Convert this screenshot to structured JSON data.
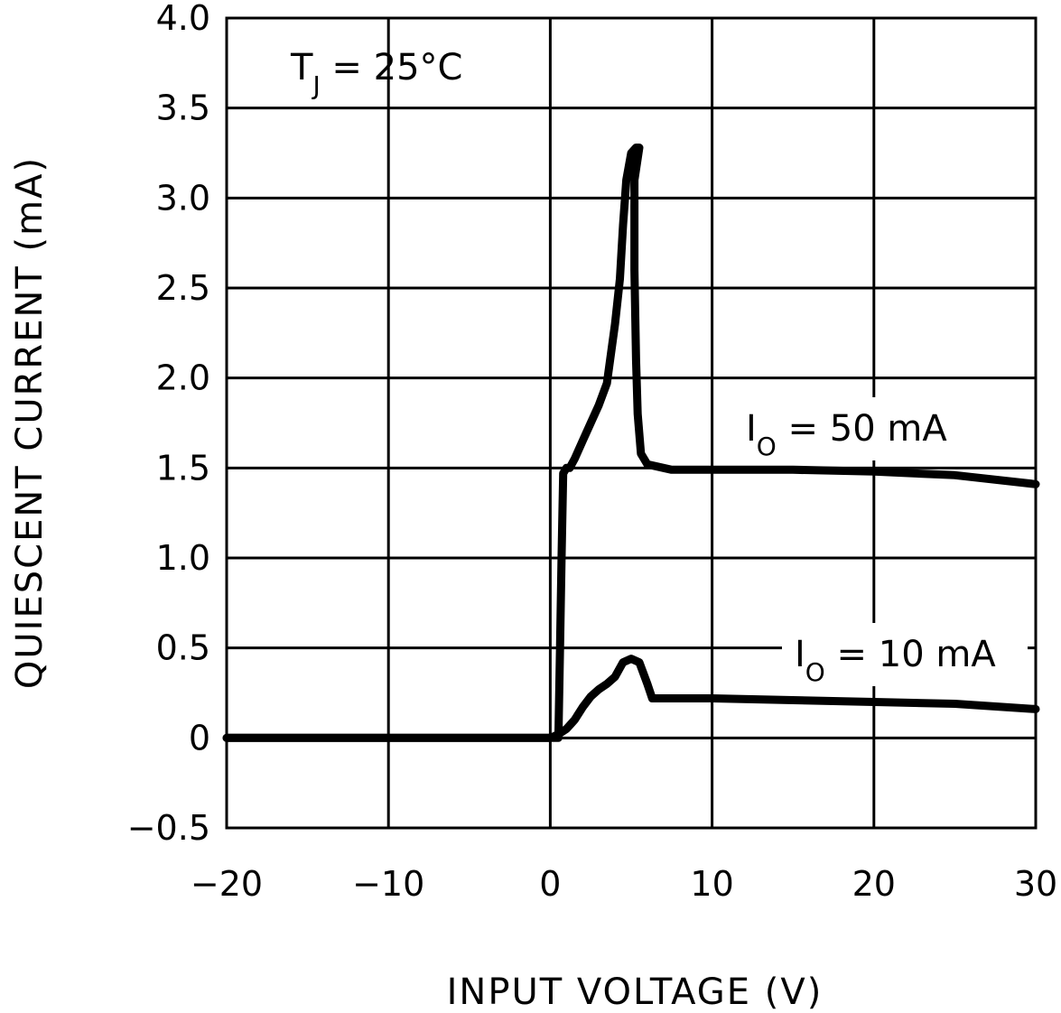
{
  "chart_data": {
    "type": "line",
    "xlabel": "INPUT VOLTAGE (V)",
    "ylabel": "QUIESCENT CURRENT (mA)",
    "xlim": [
      -20,
      30
    ],
    "ylim": [
      -0.5,
      4.0
    ],
    "x_ticks": [
      -20,
      -10,
      0,
      10,
      20,
      30
    ],
    "x_tick_labels": [
      "−20",
      "−10",
      "0",
      "10",
      "20",
      "30"
    ],
    "y_ticks": [
      -0.5,
      0,
      0.5,
      1.0,
      1.5,
      2.0,
      2.5,
      3.0,
      3.5,
      4.0
    ],
    "y_tick_labels": [
      "−0.5",
      "0",
      "0.5",
      "1.0",
      "1.5",
      "2.0",
      "2.5",
      "3.0",
      "3.5",
      "4.0"
    ],
    "grid": true,
    "annotations": [
      {
        "main": "T",
        "sub": "J",
        "rest": " = 25°C"
      }
    ],
    "series": [
      {
        "label_main": "I",
        "label_sub": "O",
        "label_rest": " = 50 mA",
        "x": [
          -20,
          0,
          0.5,
          0.6,
          0.7,
          0.8,
          1.0,
          1.2,
          1.5,
          2.0,
          2.5,
          3.0,
          3.5,
          4.0,
          4.3,
          4.5,
          4.7,
          5.0,
          5.3,
          5.5,
          5.2,
          5.2,
          5.3,
          5.4,
          5.6,
          6.0,
          6.5,
          7.0,
          7.5,
          8.0,
          10,
          15,
          20,
          25,
          30
        ],
        "y": [
          0,
          0,
          0,
          0.5,
          1.0,
          1.47,
          1.5,
          1.5,
          1.55,
          1.65,
          1.75,
          1.85,
          1.97,
          2.3,
          2.55,
          2.85,
          3.1,
          3.25,
          3.28,
          3.28,
          3.1,
          2.6,
          2.1,
          1.8,
          1.58,
          1.52,
          1.51,
          1.5,
          1.49,
          1.49,
          1.49,
          1.49,
          1.48,
          1.46,
          1.41
        ]
      },
      {
        "label_main": "I",
        "label_sub": "O",
        "label_rest": " = 10 mA",
        "x": [
          -20,
          0,
          0.5,
          1.0,
          1.5,
          2.0,
          2.5,
          3.0,
          3.5,
          4.0,
          4.5,
          5.0,
          5.5,
          6.0,
          6.3,
          6.5,
          7.0,
          10,
          15,
          20,
          25,
          30
        ],
        "y": [
          0,
          0,
          0.02,
          0.05,
          0.1,
          0.17,
          0.23,
          0.27,
          0.3,
          0.34,
          0.42,
          0.44,
          0.42,
          0.3,
          0.22,
          0.22,
          0.22,
          0.22,
          0.21,
          0.2,
          0.19,
          0.16
        ]
      }
    ]
  }
}
